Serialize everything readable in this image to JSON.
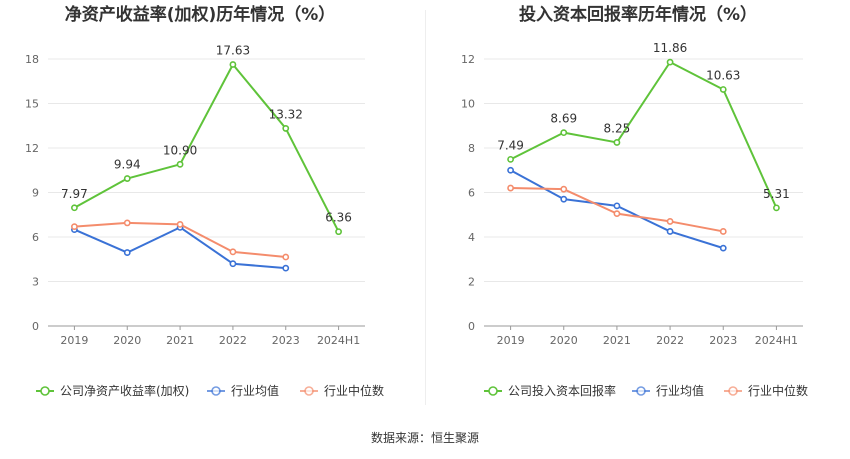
{
  "source": "数据来源：恒生聚源",
  "colors": {
    "company": "#5fc33a",
    "avg": "#3a72d6",
    "median": "#f48c6c",
    "grid": "#e8e8e8",
    "axis": "#999999",
    "divider": "#eeeeee"
  },
  "chart_data": [
    {
      "type": "line",
      "title": "净资产收益率(加权)历年情况（%）",
      "categories": [
        "2019",
        "2020",
        "2021",
        "2022",
        "2023",
        "2024H1"
      ],
      "ylim": [
        0,
        18
      ],
      "yticks": [
        0,
        3,
        6,
        9,
        12,
        15,
        18
      ],
      "grid": true,
      "legend_position": "bottom",
      "series": [
        {
          "name": "公司净资产收益率(加权)",
          "key": "company",
          "values": [
            7.97,
            9.94,
            10.9,
            17.63,
            13.32,
            6.36
          ],
          "labels": [
            "7.97",
            "9.94",
            "10.90",
            "17.63",
            "13.32",
            "6.36"
          ]
        },
        {
          "name": "行业均值",
          "key": "avg",
          "values": [
            6.5,
            4.95,
            6.65,
            4.2,
            3.9,
            null
          ]
        },
        {
          "name": "行业中位数",
          "key": "median",
          "values": [
            6.7,
            6.95,
            6.85,
            5.0,
            4.65,
            null
          ]
        }
      ]
    },
    {
      "type": "line",
      "title": "投入资本回报率历年情况（%）",
      "categories": [
        "2019",
        "2020",
        "2021",
        "2022",
        "2023",
        "2024H1"
      ],
      "ylim": [
        0,
        12
      ],
      "yticks": [
        0,
        2,
        4,
        6,
        8,
        10,
        12
      ],
      "grid": true,
      "legend_position": "bottom",
      "series": [
        {
          "name": "公司投入资本回报率",
          "key": "company",
          "values": [
            7.49,
            8.69,
            8.25,
            11.86,
            10.63,
            5.31
          ],
          "labels": [
            "7.49",
            "8.69",
            "8.25",
            "11.86",
            "10.63",
            "5.31"
          ]
        },
        {
          "name": "行业均值",
          "key": "avg",
          "values": [
            7.0,
            5.7,
            5.4,
            4.25,
            3.5,
            null
          ]
        },
        {
          "name": "行业中位数",
          "key": "median",
          "values": [
            6.2,
            6.15,
            5.05,
            4.7,
            4.25,
            null
          ]
        }
      ]
    }
  ]
}
